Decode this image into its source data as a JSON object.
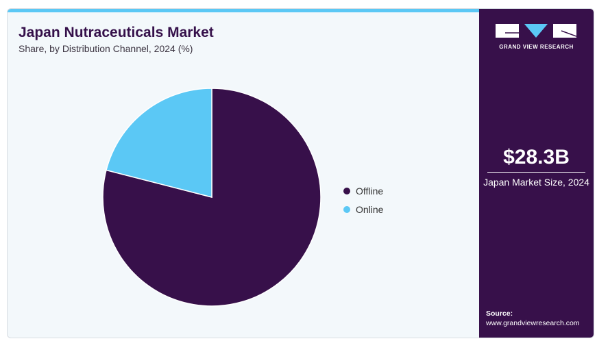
{
  "chart_data": {
    "type": "pie",
    "title": "Japan Nutraceuticals Market",
    "subtitle": "Share, by Distribution Channel, 2024 (%)",
    "categories": [
      "Offline",
      "Online"
    ],
    "values": [
      79,
      21
    ],
    "colors": [
      "#37104a",
      "#5bc8f5"
    ],
    "legend_position": "right"
  },
  "side": {
    "brand": "GRAND VIEW RESEARCH",
    "market_size": "$28.3B",
    "market_label": "Japan Market Size, 2024",
    "source_label": "Source:",
    "source_url": "www.grandviewresearch.com"
  }
}
